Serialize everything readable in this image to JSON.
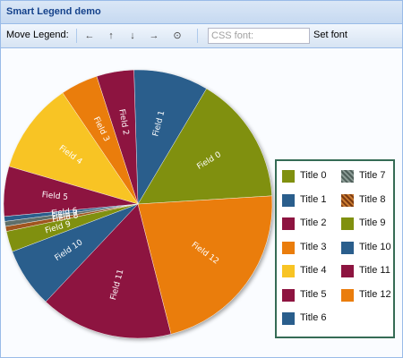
{
  "window": {
    "title": "Smart Legend demo"
  },
  "toolbar": {
    "move_label": "Move Legend:",
    "left_arrow": "←",
    "up_arrow": "↑",
    "down_arrow": "↓",
    "right_arrow": "→",
    "reset_glyph": "⊙",
    "css_placeholder": "CSS font:",
    "set_font_label": "Set font"
  },
  "chart_data": {
    "type": "pie",
    "slices": [
      {
        "label": "Field 0",
        "value": 15.5,
        "color": "#80900f"
      },
      {
        "label": "Field 1",
        "value": 9.0,
        "color": "#2a5e8c"
      },
      {
        "label": "Field 2",
        "value": 4.5,
        "color": "#8d1440"
      },
      {
        "label": "Field 3",
        "value": 4.5,
        "color": "#ea7d0c"
      },
      {
        "label": "Field 4",
        "value": 11.0,
        "color": "#f8c424"
      },
      {
        "label": "Field 5",
        "value": 6.0,
        "color": "#8d1440"
      },
      {
        "label": "Field 6",
        "value": 0.6,
        "color": "#2a5e8c"
      },
      {
        "label": "Field 7",
        "value": 0.6,
        "color": "#5f6f6a"
      },
      {
        "label": "Field 8",
        "value": 0.6,
        "color": "#a0551f"
      },
      {
        "label": "Field 9",
        "value": 2.5,
        "color": "#80900f"
      },
      {
        "label": "Field 10",
        "value": 7.2,
        "color": "#2a5e8c"
      },
      {
        "label": "Field 11",
        "value": 16.0,
        "color": "#8d1440"
      },
      {
        "label": "Field 12",
        "value": 22.0,
        "color": "#ea7d0c"
      }
    ],
    "legend": {
      "placement": "right",
      "entries": [
        {
          "label": "Title 0",
          "color": "#80900f"
        },
        {
          "label": "Title 1",
          "color": "#2a5e8c"
        },
        {
          "label": "Title 2",
          "color": "#8d1440"
        },
        {
          "label": "Title 3",
          "color": "#ea7d0c"
        },
        {
          "label": "Title 4",
          "color": "#f8c424"
        },
        {
          "label": "Title 5",
          "color": "#8d1440"
        },
        {
          "label": "Title 6",
          "color": "#2a5e8c"
        },
        {
          "label": "Title 7",
          "color": "#5f6f6a"
        },
        {
          "label": "Title 8",
          "color": "#a0551f"
        },
        {
          "label": "Title 9",
          "color": "#80900f"
        },
        {
          "label": "Title 10",
          "color": "#2a5e8c"
        },
        {
          "label": "Title 11",
          "color": "#8d1440"
        },
        {
          "label": "Title 12",
          "color": "#ea7d0c"
        }
      ]
    }
  }
}
